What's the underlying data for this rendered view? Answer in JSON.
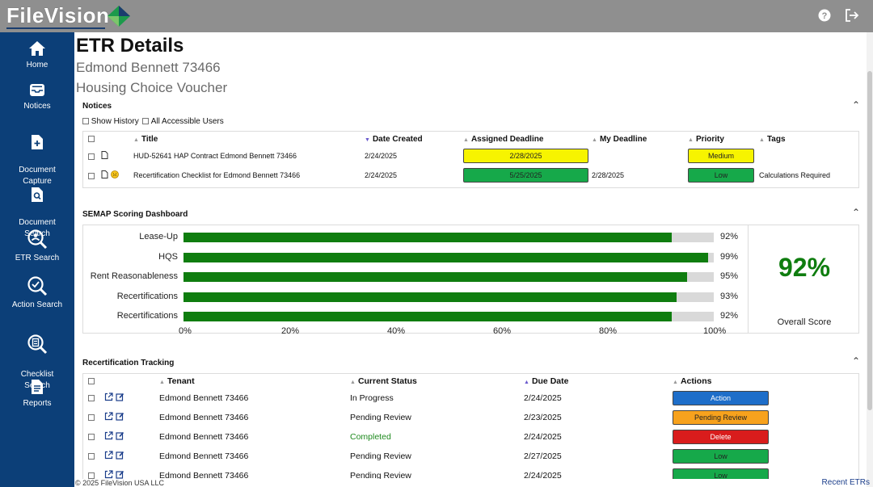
{
  "app": {
    "logo_text": "FileVision",
    "brand_colors": {
      "topbar": "#8f8f8f",
      "sidebar": "#0c3f78",
      "bar_green": "#0f7d0f"
    }
  },
  "topbar": {
    "icons": [
      "help-icon",
      "logout-icon"
    ]
  },
  "sidebar": {
    "items": [
      {
        "label": "Home",
        "icon": "home-icon"
      },
      {
        "label": "Notices",
        "icon": "inbox-icon"
      },
      {
        "label": "Document\nCapture",
        "icon": "document-plus-icon"
      },
      {
        "label": "Document\nSearch",
        "icon": "document-search-icon"
      },
      {
        "label": "ETR Search",
        "icon": "etr-search-icon"
      },
      {
        "label": "Action Search",
        "icon": "search-icon"
      },
      {
        "label": "Checklist\nSearch",
        "icon": "checklist-search-icon"
      },
      {
        "label": "Reports",
        "icon": "report-icon"
      }
    ]
  },
  "page": {
    "title": "ETR Details",
    "subtitle1": "Edmond Bennett 73466",
    "subtitle2": "Housing Choice Voucher"
  },
  "notices": {
    "title": "Notices",
    "show_history": "Show History",
    "all_users": "All Accessible Users",
    "columns": [
      "Title",
      "Date Created",
      "Assigned Deadline",
      "My Deadline",
      "Priority",
      "Tags"
    ],
    "rows": [
      {
        "title": "HUD-52641 HAP Contract Edmond Bennett 73466",
        "created": "2/24/2025",
        "assigned": "2/28/2025",
        "my": "",
        "priority": "Medium",
        "tags": ""
      },
      {
        "title": "Recertification Checklist for Edmond Bennett 73466",
        "created": "2/24/2025",
        "assigned": "5/25/2025",
        "my": "2/28/2025",
        "priority": "Low",
        "tags": "Calculations Required"
      }
    ]
  },
  "semap": {
    "title": "SEMAP Scoring Dashboard",
    "overall_value": "92%",
    "overall_label": "Overall Score",
    "rows": [
      {
        "label": "Lease-Up",
        "value": 92,
        "pct": "92%"
      },
      {
        "label": "HQS",
        "value": 99,
        "pct": "99%"
      },
      {
        "label": "Rent Reasonableness",
        "value": 95,
        "pct": "95%"
      },
      {
        "label": "Recertifications",
        "value": 93,
        "pct": "93%"
      },
      {
        "label": "Recertifications",
        "value": 92,
        "pct": "92%"
      }
    ],
    "axis": [
      "0%",
      "20%",
      "40%",
      "60%",
      "80%",
      "100%"
    ]
  },
  "chart_data": {
    "type": "bar",
    "categories": [
      "Lease-Up",
      "HQS",
      "Rent Reasonableness",
      "Recertifications",
      "Recertifications"
    ],
    "values": [
      92,
      99,
      95,
      93,
      92
    ],
    "xlim": [
      0,
      100
    ],
    "title": "SEMAP Scoring Dashboard"
  },
  "tracking": {
    "title": "Recertification Tracking",
    "columns": [
      "Tenant",
      "Current Status",
      "Due Date",
      "Actions"
    ],
    "rows": [
      {
        "tenant": "Edmond Bennett 73466",
        "status": "In Progress",
        "due": "2/24/2025",
        "action": "Action",
        "color": "blue"
      },
      {
        "tenant": "Edmond Bennett 73466",
        "status": "Pending Review",
        "due": "2/23/2025",
        "action": "Pending Review",
        "color": "orange"
      },
      {
        "tenant": "Edmond Bennett 73466",
        "status": "Completed",
        "due": "2/24/2025",
        "action": "Delete",
        "color": "red"
      },
      {
        "tenant": "Edmond Bennett 73466",
        "status": "Pending Review",
        "due": "2/27/2025",
        "action": "Low",
        "color": "green"
      },
      {
        "tenant": "Edmond Bennett 73466",
        "status": "Pending Review",
        "due": "2/24/2025",
        "action": "Low",
        "color": "green"
      }
    ]
  },
  "footer": {
    "copyright": "© 2025 FileVision USA LLC",
    "recent": "Recent ETRs"
  }
}
